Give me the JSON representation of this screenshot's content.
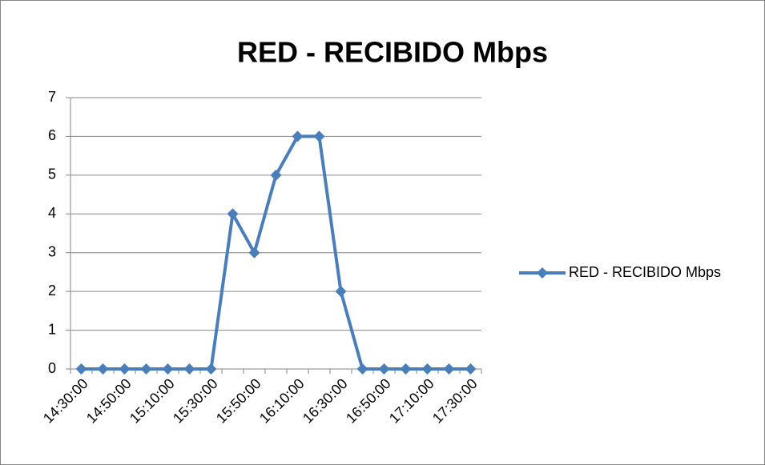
{
  "chart_data": {
    "type": "line",
    "title": "RED - RECIBIDO Mbps",
    "categories": [
      "14:30:00",
      null,
      "14:50:00",
      null,
      "15:10:00",
      null,
      "15:30:00",
      null,
      "15:50:00",
      null,
      "16:10:00",
      null,
      "16:30:00",
      null,
      "16:50:00",
      null,
      "17:10:00",
      null,
      "17:30:00"
    ],
    "series": [
      {
        "name": "RED - RECIBIDO Mbps",
        "color": "#4a7ebb",
        "values": [
          0,
          0,
          0,
          0,
          0,
          0,
          0,
          4,
          3,
          5,
          6,
          6,
          2,
          0,
          0,
          0,
          0,
          0,
          0
        ]
      }
    ],
    "ylim": [
      0,
      7
    ],
    "yticks": [
      0,
      1,
      2,
      3,
      4,
      5,
      6,
      7
    ],
    "grid": true,
    "legend": "right"
  }
}
